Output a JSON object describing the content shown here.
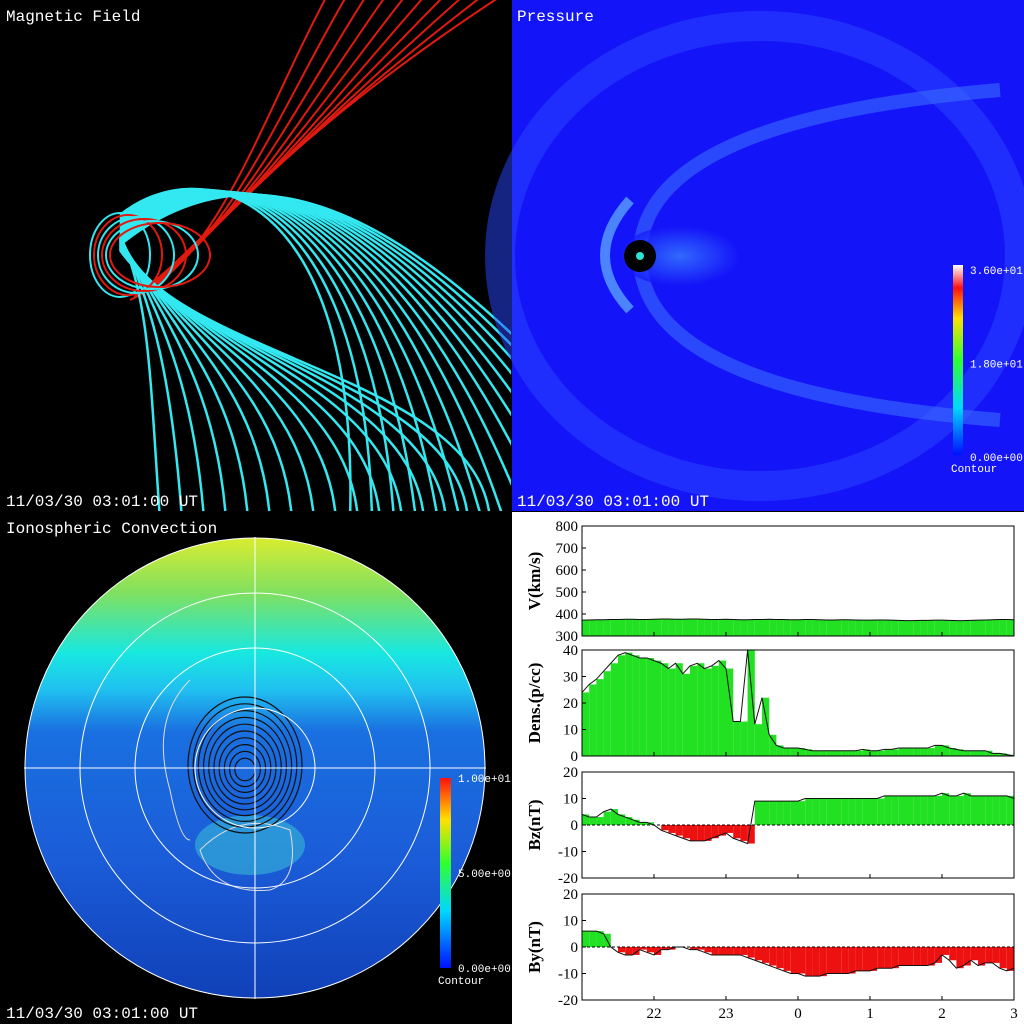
{
  "panels": {
    "magnetic_field": {
      "title": "Magnetic Field",
      "time": "11/03/30 03:01:00 UT"
    },
    "pressure": {
      "title": "Pressure",
      "time": "11/03/30 03:01:00 UT",
      "colorbar": {
        "lim": [
          0,
          36
        ],
        "ticks": [
          {
            "value": 36,
            "label": "3.60e+01"
          },
          {
            "value": 18,
            "label": "1.80e+01"
          },
          {
            "value": 0,
            "label": "0.00e+00"
          }
        ],
        "caption": "Contour"
      }
    },
    "ionosphere": {
      "title": "Ionospheric Convection",
      "time": "11/03/30 03:01:00 UT",
      "colorbar": {
        "lim": [
          0,
          10
        ],
        "ticks": [
          {
            "value": 10,
            "label": "1.00e+01"
          },
          {
            "value": 5,
            "label": "5.00e+00"
          },
          {
            "value": 0,
            "label": "0.00e+00"
          }
        ],
        "caption": "Contour"
      }
    }
  },
  "chart_data": [
    {
      "type": "area",
      "ylabel": "V(km/s)",
      "color": "#22e022",
      "negative_color": "#ee1111",
      "x": [
        21,
        21.1,
        21.2,
        21.3,
        21.4,
        21.5,
        21.6,
        21.7,
        21.8,
        21.9,
        22,
        22.1,
        22.2,
        22.3,
        22.4,
        22.5,
        22.6,
        22.7,
        22.8,
        22.9,
        23,
        23.1,
        23.2,
        23.3,
        23.4,
        23.5,
        23.6,
        23.7,
        23.8,
        23.9,
        24,
        24.1,
        24.2,
        24.3,
        24.4,
        24.5,
        24.6,
        24.7,
        24.8,
        24.9,
        25,
        25.1,
        25.2,
        25.3,
        25.4,
        25.5,
        25.6,
        25.7,
        25.8,
        25.9,
        26,
        26.1,
        26.2,
        26.3,
        26.4,
        26.5,
        26.6,
        26.7,
        26.8,
        26.9,
        27
      ],
      "values": [
        372,
        373,
        374,
        374,
        375,
        375,
        376,
        376,
        375,
        375,
        376,
        377,
        377,
        376,
        376,
        377,
        377,
        376,
        375,
        375,
        376,
        375,
        374,
        374,
        375,
        375,
        376,
        375,
        375,
        374,
        374,
        375,
        375,
        374,
        373,
        373,
        374,
        374,
        373,
        372,
        372,
        373,
        373,
        372,
        371,
        370,
        370,
        371,
        371,
        372,
        372,
        371,
        370,
        370,
        371,
        372,
        373,
        374,
        375,
        375,
        374
      ],
      "xlim": [
        21,
        27
      ],
      "ylim": [
        300,
        800
      ],
      "yticks": [
        300,
        400,
        500,
        600,
        700,
        800
      ]
    },
    {
      "type": "area",
      "ylabel": "Dens.(p/cc)",
      "color": "#22e022",
      "negative_color": "#ee1111",
      "x": [
        21,
        21.1,
        21.2,
        21.3,
        21.4,
        21.5,
        21.6,
        21.7,
        21.8,
        21.9,
        22,
        22.1,
        22.2,
        22.3,
        22.4,
        22.5,
        22.6,
        22.7,
        22.8,
        22.9,
        23,
        23.1,
        23.2,
        23.3,
        23.4,
        23.5,
        23.6,
        23.7,
        23.8,
        23.9,
        24,
        24.1,
        24.2,
        24.3,
        24.4,
        24.5,
        24.6,
        24.7,
        24.8,
        24.9,
        25,
        25.1,
        25.2,
        25.3,
        25.4,
        25.5,
        25.6,
        25.7,
        25.8,
        25.9,
        26,
        26.1,
        26.2,
        26.3,
        26.4,
        26.5,
        26.6,
        26.7,
        26.8,
        26.9,
        27
      ],
      "values": [
        24,
        27,
        29,
        32,
        35,
        38,
        39,
        38,
        37,
        37,
        36,
        35,
        33,
        35,
        31,
        34,
        35,
        33,
        34,
        36,
        33,
        13,
        13,
        40,
        12,
        22,
        8,
        4,
        3,
        3,
        3,
        2.5,
        2,
        2,
        2,
        2,
        2,
        2,
        2,
        2.5,
        2,
        2,
        2.5,
        2.5,
        3,
        3,
        3,
        3,
        3,
        4,
        4,
        3,
        2.5,
        2,
        2,
        2,
        2,
        1,
        1,
        0.5,
        0
      ],
      "xlim": [
        21,
        27
      ],
      "ylim": [
        0,
        40
      ],
      "yticks": [
        0,
        10,
        20,
        30,
        40
      ]
    },
    {
      "type": "area",
      "ylabel": "Bz(nT)",
      "color": "#22e022",
      "negative_color": "#ee1111",
      "x": [
        21,
        21.1,
        21.2,
        21.3,
        21.4,
        21.5,
        21.6,
        21.7,
        21.8,
        21.9,
        22,
        22.1,
        22.2,
        22.3,
        22.4,
        22.5,
        22.6,
        22.7,
        22.8,
        22.9,
        23,
        23.1,
        23.2,
        23.3,
        23.4,
        23.5,
        23.6,
        23.7,
        23.8,
        23.9,
        24,
        24.1,
        24.2,
        24.3,
        24.4,
        24.5,
        24.6,
        24.7,
        24.8,
        24.9,
        25,
        25.1,
        25.2,
        25.3,
        25.4,
        25.5,
        25.6,
        25.7,
        25.8,
        25.9,
        26,
        26.1,
        26.2,
        26.3,
        26.4,
        26.5,
        26.6,
        26.7,
        26.8,
        26.9,
        27
      ],
      "values": [
        4,
        3,
        3,
        5,
        6,
        4,
        3,
        2,
        1,
        1,
        0,
        -2,
        -3,
        -4,
        -5,
        -6,
        -6,
        -6,
        -5,
        -4,
        -3,
        -5,
        -6,
        -7,
        9,
        9,
        9,
        9,
        9,
        9,
        9,
        10,
        10,
        10,
        10,
        10,
        10,
        10,
        10,
        10,
        10,
        10,
        11,
        11,
        11,
        11,
        11,
        11,
        11,
        11,
        12,
        11,
        11,
        12,
        11,
        11,
        11,
        11,
        11,
        11,
        10
      ],
      "xlim": [
        21,
        27
      ],
      "ylim": [
        -20,
        20
      ],
      "yticks": [
        -20,
        -10,
        0,
        10,
        20
      ]
    },
    {
      "type": "area",
      "ylabel": "By(nT)",
      "color": "#22e022",
      "negative_color": "#ee1111",
      "x": [
        21,
        21.1,
        21.2,
        21.3,
        21.4,
        21.5,
        21.6,
        21.7,
        21.8,
        21.9,
        22,
        22.1,
        22.2,
        22.3,
        22.4,
        22.5,
        22.6,
        22.7,
        22.8,
        22.9,
        23,
        23.1,
        23.2,
        23.3,
        23.4,
        23.5,
        23.6,
        23.7,
        23.8,
        23.9,
        24,
        24.1,
        24.2,
        24.3,
        24.4,
        24.5,
        24.6,
        24.7,
        24.8,
        24.9,
        25,
        25.1,
        25.2,
        25.3,
        25.4,
        25.5,
        25.6,
        25.7,
        25.8,
        25.9,
        26,
        26.1,
        26.2,
        26.3,
        26.4,
        26.5,
        26.6,
        26.7,
        26.8,
        26.9,
        27
      ],
      "values": [
        6,
        6,
        6,
        5,
        0,
        -2,
        -3,
        -3,
        -1,
        -2,
        -3,
        -1,
        -1,
        0,
        0,
        -1,
        -1,
        -2,
        -3,
        -3,
        -3,
        -3,
        -3,
        -4,
        -5,
        -6,
        -7,
        -8,
        -9,
        -10,
        -10,
        -11,
        -11,
        -11,
        -10,
        -10,
        -10,
        -10,
        -9,
        -9,
        -9,
        -8,
        -8,
        -8,
        -7,
        -7,
        -7,
        -7,
        -7,
        -6,
        -3,
        -5,
        -8,
        -7,
        -5,
        -7,
        -6,
        -6,
        -8,
        -9,
        -8
      ],
      "xlim": [
        21,
        27
      ],
      "ylim": [
        -20,
        20
      ],
      "yticks": [
        -20,
        -10,
        0,
        10,
        20
      ],
      "xticks": [
        22,
        23,
        {
          "value": 24,
          "label": "0"
        },
        {
          "value": 25,
          "label": "1"
        },
        {
          "value": 26,
          "label": "2"
        },
        {
          "value": 27,
          "label": "3"
        }
      ]
    }
  ]
}
